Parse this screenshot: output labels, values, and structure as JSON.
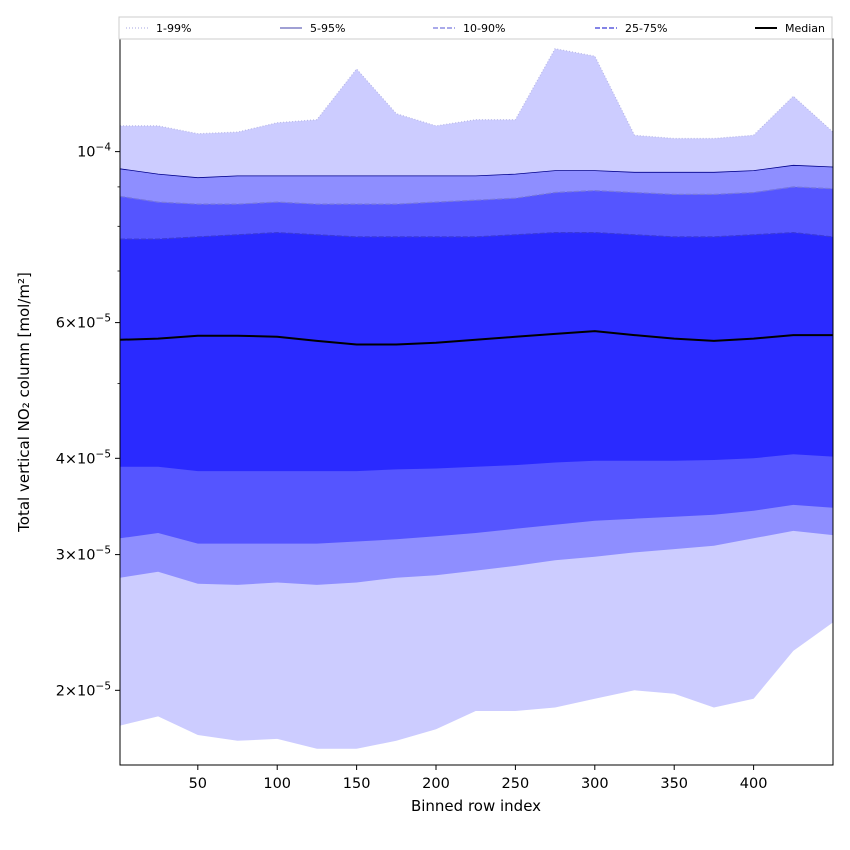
{
  "chart_data": {
    "type": "area",
    "xlabel": "Binned row index",
    "ylabel": "Total vertical NO₂ column [mol/m²]",
    "xlim": [
      1,
      450
    ],
    "ylim": [
      1.6e-05,
      0.00014
    ],
    "yscale": "log",
    "grid": false,
    "legend_position": "top",
    "x_ticks": [
      50,
      100,
      150,
      200,
      250,
      300,
      350,
      400
    ],
    "y_ticks": [
      {
        "value": 2e-05,
        "coef": "2",
        "exp": "−5"
      },
      {
        "value": 3e-05,
        "coef": "3",
        "exp": "−5"
      },
      {
        "value": 4e-05,
        "coef": "4",
        "exp": "−5"
      },
      {
        "value": 6e-05,
        "coef": "6",
        "exp": "−5"
      },
      {
        "value": 0.0001,
        "coef": "10",
        "exp": "−4"
      }
    ],
    "x": [
      1,
      25,
      50,
      75,
      100,
      125,
      150,
      175,
      200,
      225,
      250,
      275,
      300,
      325,
      350,
      375,
      400,
      425,
      450
    ],
    "bands": [
      {
        "name": "1-99%",
        "color": "#ccccff",
        "line_color": "#b8b8e8",
        "line_style": "dotted",
        "lower": [
          1.8e-05,
          1.85e-05,
          1.75e-05,
          1.72e-05,
          1.73e-05,
          1.68e-05,
          1.68e-05,
          1.72e-05,
          1.78e-05,
          1.88e-05,
          1.88e-05,
          1.9e-05,
          1.95e-05,
          2e-05,
          1.98e-05,
          1.9e-05,
          1.95e-05,
          2.25e-05,
          2.45e-05
        ],
        "upper": [
          0.000108,
          0.000108,
          0.0001055,
          0.000106,
          0.000109,
          0.00011,
          0.000128,
          0.000112,
          0.000108,
          0.00011,
          0.00011,
          0.000136,
          0.000133,
          0.000105,
          0.000104,
          0.000104,
          0.000105,
          0.000118,
          0.000106
        ]
      },
      {
        "name": "5-95%",
        "color": "#8e8eff",
        "line_color": "#00008b",
        "line_style": "solid",
        "lower": [
          2.8e-05,
          2.85e-05,
          2.75e-05,
          2.74e-05,
          2.76e-05,
          2.74e-05,
          2.76e-05,
          2.8e-05,
          2.82e-05,
          2.86e-05,
          2.9e-05,
          2.95e-05,
          2.98e-05,
          3.02e-05,
          3.05e-05,
          3.08e-05,
          3.15e-05,
          3.22e-05,
          3.18e-05
        ],
        "upper": [
          9.5e-05,
          9.35e-05,
          9.25e-05,
          9.3e-05,
          9.3e-05,
          9.3e-05,
          9.3e-05,
          9.3e-05,
          9.3e-05,
          9.3e-05,
          9.35e-05,
          9.45e-05,
          9.45e-05,
          9.4e-05,
          9.4e-05,
          9.4e-05,
          9.45e-05,
          9.6e-05,
          9.55e-05
        ]
      },
      {
        "name": "10-90%",
        "color": "#5555ff",
        "line_color": "#7777dd",
        "line_style": "dashed",
        "lower": [
          3.15e-05,
          3.2e-05,
          3.1e-05,
          3.1e-05,
          3.1e-05,
          3.1e-05,
          3.12e-05,
          3.14e-05,
          3.17e-05,
          3.2e-05,
          3.24e-05,
          3.28e-05,
          3.32e-05,
          3.34e-05,
          3.36e-05,
          3.38e-05,
          3.42e-05,
          3.48e-05,
          3.45e-05
        ],
        "upper": [
          8.75e-05,
          8.6e-05,
          8.55e-05,
          8.55e-05,
          8.6e-05,
          8.55e-05,
          8.55e-05,
          8.55e-05,
          8.6e-05,
          8.65e-05,
          8.7e-05,
          8.85e-05,
          8.9e-05,
          8.85e-05,
          8.8e-05,
          8.8e-05,
          8.85e-05,
          9e-05,
          8.95e-05
        ]
      },
      {
        "name": "25-75%",
        "color": "#2a2aff",
        "line_color": "#3a3ad8",
        "line_style": "dashed",
        "lower": [
          3.9e-05,
          3.9e-05,
          3.85e-05,
          3.85e-05,
          3.85e-05,
          3.85e-05,
          3.85e-05,
          3.87e-05,
          3.88e-05,
          3.9e-05,
          3.92e-05,
          3.95e-05,
          3.97e-05,
          3.97e-05,
          3.97e-05,
          3.98e-05,
          4e-05,
          4.05e-05,
          4.02e-05
        ],
        "upper": [
          7.7e-05,
          7.7e-05,
          7.75e-05,
          7.8e-05,
          7.85e-05,
          7.8e-05,
          7.75e-05,
          7.75e-05,
          7.75e-05,
          7.75e-05,
          7.8e-05,
          7.85e-05,
          7.85e-05,
          7.8e-05,
          7.75e-05,
          7.75e-05,
          7.8e-05,
          7.85e-05,
          7.75e-05
        ]
      }
    ],
    "median": {
      "name": "Median",
      "color": "#000000",
      "values": [
        5.7e-05,
        5.72e-05,
        5.77e-05,
        5.77e-05,
        5.75e-05,
        5.68e-05,
        5.62e-05,
        5.62e-05,
        5.65e-05,
        5.7e-05,
        5.75e-05,
        5.8e-05,
        5.85e-05,
        5.78e-05,
        5.72e-05,
        5.68e-05,
        5.72e-05,
        5.78e-05,
        5.78e-05
      ]
    }
  }
}
